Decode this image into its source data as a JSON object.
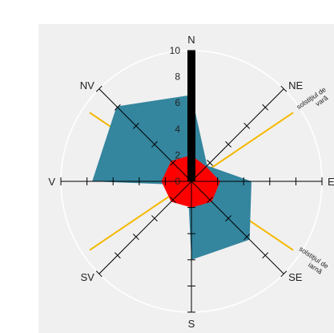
{
  "chart_data": {
    "type": "radar",
    "directions": [
      "N",
      "NE",
      "E",
      "SE",
      "S",
      "SV",
      "V",
      "NV"
    ],
    "radial_ticks": [
      0,
      2,
      4,
      6,
      8,
      10
    ],
    "radial_range": [
      0,
      10
    ],
    "grid": true,
    "series": [
      {
        "values": [
          6.6,
          1.7,
          4.6,
          6.3,
          6.0,
          0.4,
          7.6,
          8.1
        ],
        "color": "#34859e"
      },
      {
        "values": [
          2.0,
          1.6,
          2.2,
          2.2,
          2.0,
          2.2,
          2.3,
          2.2
        ],
        "color": "#ff0000"
      }
    ],
    "north_bar": {
      "value": 10,
      "color": "#000000"
    },
    "solstice_lines": [
      {
        "label_lines": [
          "solstițiul de",
          "vară"
        ],
        "bearing": 56,
        "color": "#f5b800"
      },
      {
        "label_lines": [
          "solstițiul de",
          "iarnă"
        ],
        "bearing": 124,
        "color": "#f5b800"
      }
    ],
    "colors": {
      "background": "#f0f0f0",
      "grid": "#ffffff",
      "axis": "#000000"
    }
  }
}
